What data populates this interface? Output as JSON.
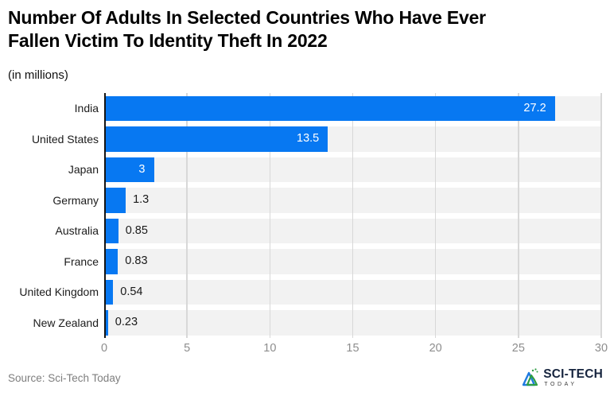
{
  "header": {
    "title_lines": [
      "Number Of Adults In Selected Countries Who Have Ever",
      "Fallen Victim To Identity Theft In 2022"
    ],
    "subtitle": "(in millions)"
  },
  "chart_data": {
    "type": "bar",
    "orientation": "horizontal",
    "title": "Number Of Adults In Selected Countries Who Have Ever Fallen Victim To Identity Theft In 2022",
    "subtitle": "(in millions)",
    "categories": [
      "India",
      "United States",
      "Japan",
      "Germany",
      "Australia",
      "France",
      "United Kingdom",
      "New Zealand"
    ],
    "values": [
      27.2,
      13.5,
      3,
      1.3,
      0.85,
      0.83,
      0.54,
      0.23
    ],
    "value_labels": [
      "27.2",
      "13.5",
      "3",
      "1.3",
      "0.85",
      "0.83",
      "0.54",
      "0.23"
    ],
    "x_ticks": [
      0,
      5,
      10,
      15,
      20,
      25,
      30
    ],
    "xlim": [
      0,
      30
    ],
    "xlabel": "",
    "ylabel": "",
    "grid": "vertical",
    "legend": "none",
    "bar_color": "#0778f2",
    "track_color": "#f2f2f2",
    "gridline_color": "#d8d8d8",
    "inside_label_color": "#ffffff",
    "outside_label_color": "#1a1a1a"
  },
  "footer": {
    "source": "Source: Sci-Tech Today",
    "logo": {
      "brand": "SCI-TECH",
      "sub": "TODAY"
    }
  }
}
